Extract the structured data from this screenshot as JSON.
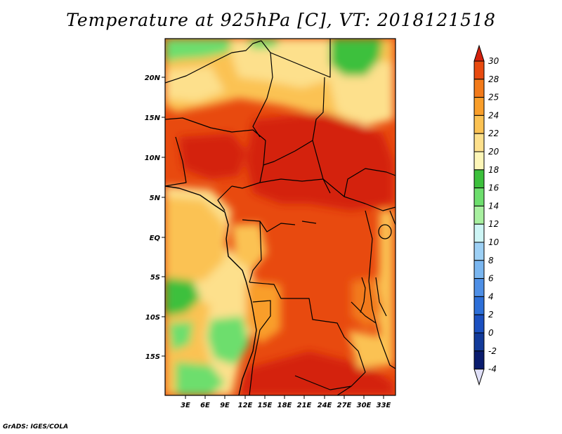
{
  "title": "Temperature at 925hPa [C], VT: 2018121518",
  "credit": "GrADS: IGES/COLA",
  "map": {
    "lat_labels": [
      "20N",
      "15N",
      "10N",
      "5N",
      "EQ",
      "5S",
      "10S",
      "15S"
    ],
    "lon_labels": [
      "3E",
      "6E",
      "9E",
      "12E",
      "15E",
      "18E",
      "21E",
      "24E",
      "27E",
      "30E",
      "33E"
    ]
  },
  "colorbar": {
    "levels": [
      "30",
      "28",
      "25",
      "24",
      "22",
      "20",
      "18",
      "16",
      "14",
      "12",
      "10",
      "8",
      "6",
      "4",
      "2",
      "0",
      "-2",
      "-4"
    ],
    "colors": [
      "#d4210d",
      "#e84a0f",
      "#f27a1a",
      "#f99e2a",
      "#fbc253",
      "#fde08c",
      "#fdf6b8",
      "#3cc03c",
      "#6dde6d",
      "#a8f0a0",
      "#cdf5f5",
      "#9dd0f5",
      "#7ab6f0",
      "#4e8fe6",
      "#2d6fd8",
      "#1b50c0",
      "#123a9a",
      "#0a1c6e",
      "#e0e0f8"
    ]
  }
}
